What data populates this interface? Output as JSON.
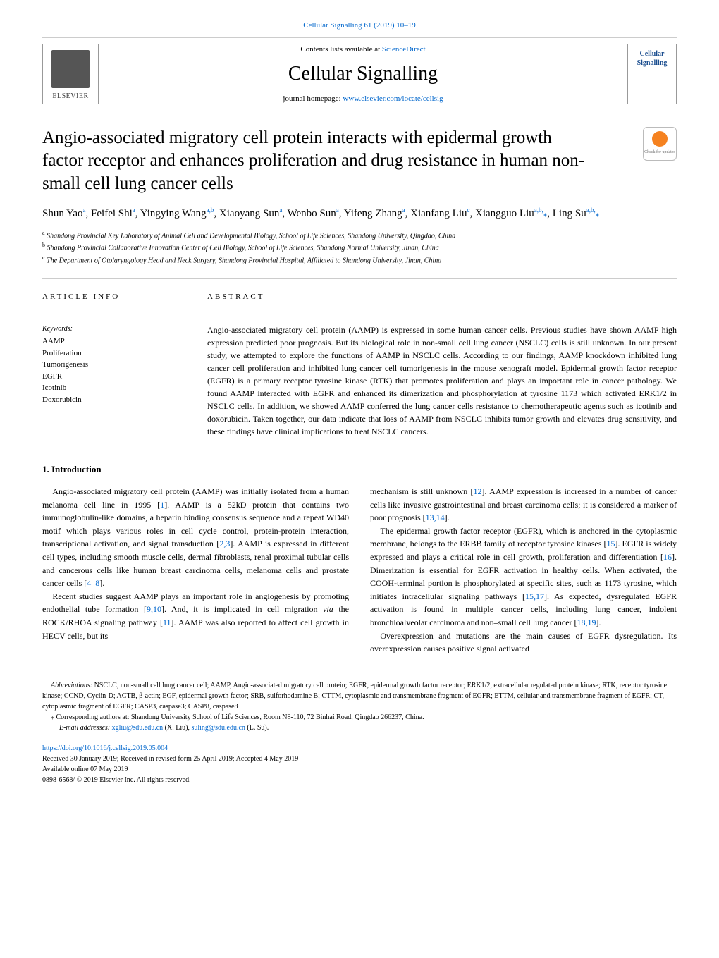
{
  "top_link": "Cellular Signalling 61 (2019) 10–19",
  "masthead": {
    "elsevier_label": "ELSEVIER",
    "contents_prefix": "Contents lists available at ",
    "contents_link": "ScienceDirect",
    "journal_name": "Cellular Signalling",
    "homepage_prefix": "journal homepage: ",
    "homepage_url": "www.elsevier.com/locate/cellsig",
    "cover_title_line1": "Cellular",
    "cover_title_line2": "Signalling"
  },
  "badge_text": "Check for updates",
  "title": "Angio-associated migratory cell protein interacts with epidermal growth factor receptor and enhances proliferation and drug resistance in human non-small cell lung cancer cells",
  "authors_html": "Shun Yao<sup>a</sup>, Feifei Shi<sup>a</sup>, Yingying Wang<sup>a,b</sup>, Xiaoyang Sun<sup>a</sup>, Wenbo Sun<sup>a</sup>, Yifeng Zhang<sup>a</sup>, Xianfang Liu<sup>c</sup>, Xiangguo Liu<sup>a,b,</sup><span class='star'>⁎</span>, Ling Su<sup>a,b,</sup><span class='star'>⁎</span>",
  "affiliations": {
    "a": "Shandong Provincial Key Laboratory of Animal Cell and Developmental Biology, School of Life Sciences, Shandong University, Qingdao, China",
    "b": "Shandong Provincial Collaborative Innovation Center of Cell Biology, School of Life Sciences, Shandong Normal University, Jinan, China",
    "c": "The Department of Otolaryngology Head and Neck Surgery, Shandong Provincial Hospital, Affiliated to Shandong University, Jinan, China"
  },
  "article_info_heading": "ARTICLE INFO",
  "abstract_heading": "ABSTRACT",
  "keywords_label": "Keywords:",
  "keywords": [
    "AAMP",
    "Proliferation",
    "Tumorigenesis",
    "EGFR",
    "Icotinib",
    "Doxorubicin"
  ],
  "abstract_text": "Angio-associated migratory cell protein (AAMP) is expressed in some human cancer cells. Previous studies have shown AAMP high expression predicted poor prognosis. But its biological role in non-small cell lung cancer (NSCLC) cells is still unknown. In our present study, we attempted to explore the functions of AAMP in NSCLC cells. According to our findings, AAMP knockdown inhibited lung cancer cell proliferation and inhibited lung cancer cell tumorigenesis in the mouse xenograft model. Epidermal growth factor receptor (EGFR) is a primary receptor tyrosine kinase (RTK) that promotes proliferation and plays an important role in cancer pathology. We found AAMP interacted with EGFR and enhanced its dimerization and phosphorylation at tyrosine 1173 which activated ERK1/2 in NSCLC cells. In addition, we showed AAMP conferred the lung cancer cells resistance to chemotherapeutic agents such as icotinib and doxorubicin. Taken together, our data indicate that loss of AAMP from NSCLC inhibits tumor growth and elevates drug sensitivity, and these findings have clinical implications to treat NSCLC cancers.",
  "intro_heading": "1. Introduction",
  "col1": {
    "p1": "Angio-associated migratory cell protein (AAMP) was initially isolated from a human melanoma cell line in 1995 [1]. AAMP is a 52kD protein that contains two immunoglobulin-like domains, a heparin binding consensus sequence and a repeat WD40 motif which plays various roles in cell cycle control, protein-protein interaction, transcriptional activation, and signal transduction [2,3]. AAMP is expressed in different cell types, including smooth muscle cells, dermal fibroblasts, renal proximal tubular cells and cancerous cells like human breast carcinoma cells, melanoma cells and prostate cancer cells [4–8].",
    "p2": "Recent studies suggest AAMP plays an important role in angiogenesis by promoting endothelial tube formation [9,10]. And, it is implicated in cell migration via the ROCK/RHOA signaling pathway [11]. AAMP was also reported to affect cell growth in HECV cells, but its"
  },
  "col2": {
    "p1": "mechanism is still unknown [12]. AAMP expression is increased in a number of cancer cells like invasive gastrointestinal and breast carcinoma cells; it is considered a marker of poor prognosis [13,14].",
    "p2": "The epidermal growth factor receptor (EGFR), which is anchored in the cytoplasmic membrane, belongs to the ERBB family of receptor tyrosine kinases [15]. EGFR is widely expressed and plays a critical role in cell growth, proliferation and differentiation [16]. Dimerization is essential for EGFR activation in healthy cells. When activated, the COOH-terminal portion is phosphorylated at specific sites, such as 1173 tyrosine, which initiates intracellular signaling pathways [15,17]. As expected, dysregulated EGFR activation is found in multiple cancer cells, including lung cancer, indolent bronchioalveolar carcinoma and non–small cell lung cancer [18,19].",
    "p3": "Overexpression and mutations are the main causes of EGFR dysregulation. Its overexpression causes positive signal activated"
  },
  "footnotes": {
    "abbrev_label": "Abbreviations:",
    "abbrev_text": " NSCLC, non-small cell lung cancer cell; AAMP, Angio-associated migratory cell protein; EGFR, epidermal growth factor receptor; ERK1/2, extracellular regulated protein kinase; RTK, receptor tyrosine kinase; CCND, Cyclin-D; ACTB, β-actin; EGF, epidermal growth factor; SRB, sulforhodamine B; CTTM, cytoplasmic and transmembrane fragment of EGFR; ETTM, cellular and transmembrane fragment of EGFR; CT, cytoplasmic fragment of EGFR; CASP3, caspase3; CASP8, caspase8",
    "corr_text": "Corresponding authors at: Shandong University School of Life Sciences, Room N8-110, 72 Binhai Road, Qingdao 266237, China.",
    "email_label": "E-mail addresses:",
    "email1": "xgliu@sdu.edu.cn",
    "email1_name": "(X. Liu),",
    "email2": "suling@sdu.edu.cn",
    "email2_name": "(L. Su)."
  },
  "doi": "https://doi.org/10.1016/j.cellsig.2019.05.004",
  "received": "Received 30 January 2019; Received in revised form 25 April 2019; Accepted 4 May 2019",
  "available": "Available online 07 May 2019",
  "copyright": "0898-6568/ © 2019 Elsevier Inc. All rights reserved.",
  "colors": {
    "link": "#0066cc",
    "border": "#cccccc",
    "orange": "#f58220",
    "navy": "#1a4d8f"
  }
}
